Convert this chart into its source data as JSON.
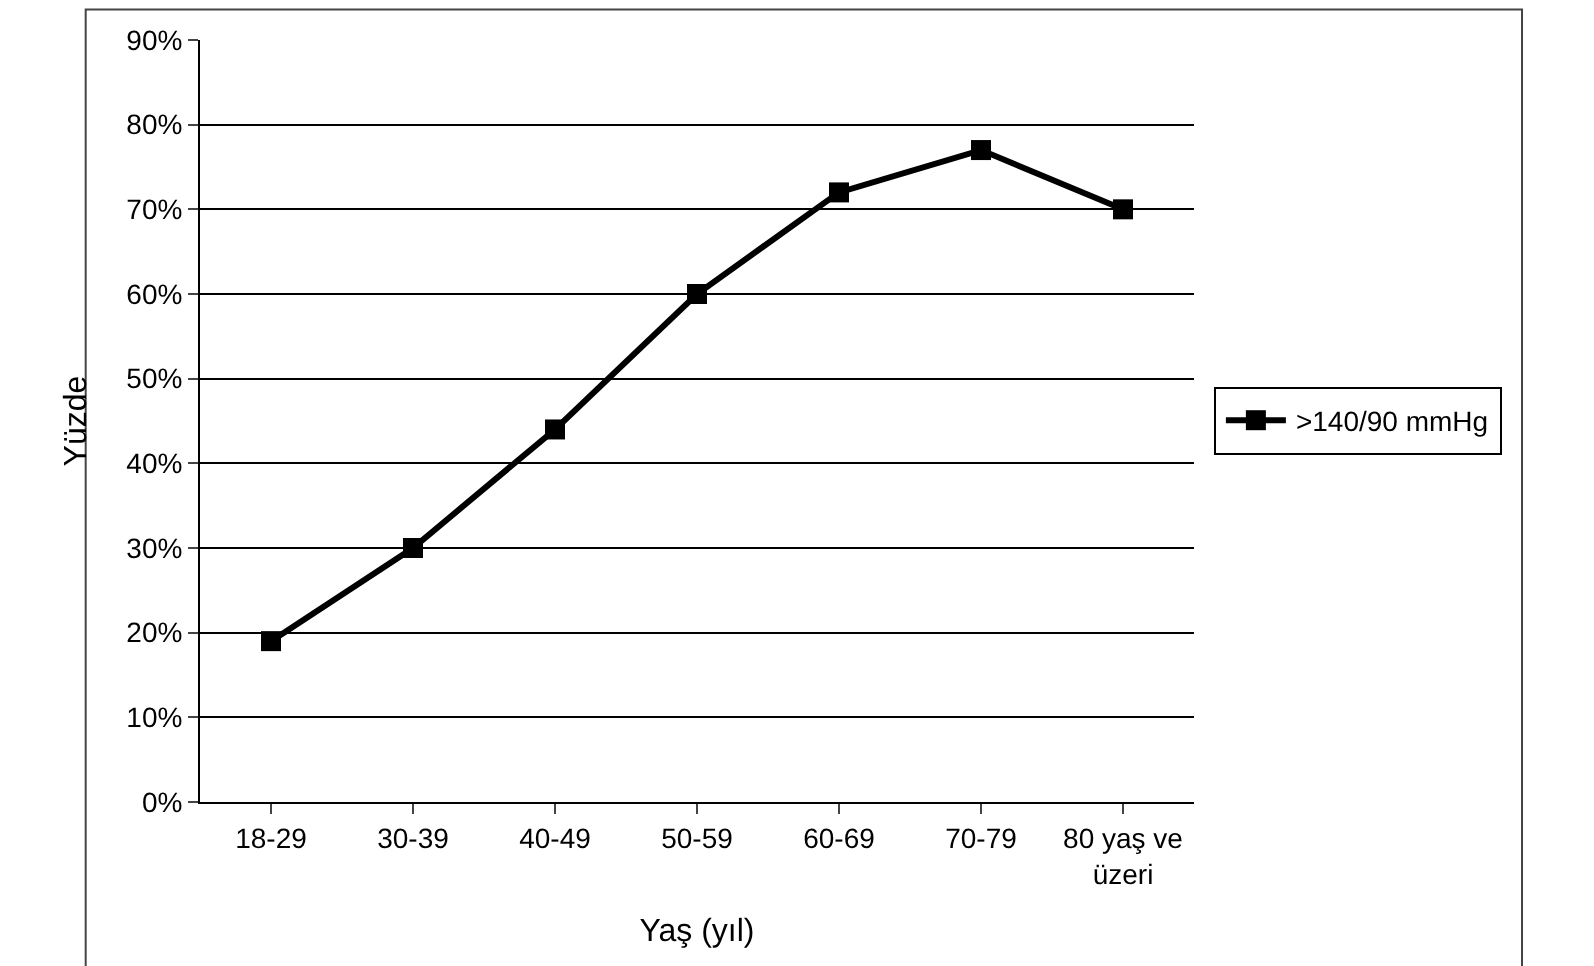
{
  "chart_data": {
    "type": "line",
    "xlabel": "Yaş (yıl)",
    "ylabel": "Yüzde",
    "categories": [
      "18-29",
      "30-39",
      "40-49",
      "50-59",
      "60-69",
      "70-79",
      "80 yaş ve üzeri"
    ],
    "series": [
      {
        "name": ">140/90 mmHg",
        "color": "#000000",
        "values": [
          19,
          30,
          44,
          60,
          72,
          77,
          70
        ]
      }
    ],
    "ylim": [
      0,
      90
    ],
    "yticks": [
      {
        "value": 0,
        "label": "0%"
      },
      {
        "value": 10,
        "label": "10%"
      },
      {
        "value": 20,
        "label": "20%"
      },
      {
        "value": 30,
        "label": "30%"
      },
      {
        "value": 40,
        "label": "40%"
      },
      {
        "value": 50,
        "label": "50%"
      },
      {
        "value": 60,
        "label": "60%"
      },
      {
        "value": 70,
        "label": "70%"
      },
      {
        "value": 80,
        "label": "80%"
      },
      {
        "value": 90,
        "label": "90%"
      }
    ],
    "grid": "y",
    "legend": "right",
    "marker": "square",
    "line_style": "solid"
  }
}
